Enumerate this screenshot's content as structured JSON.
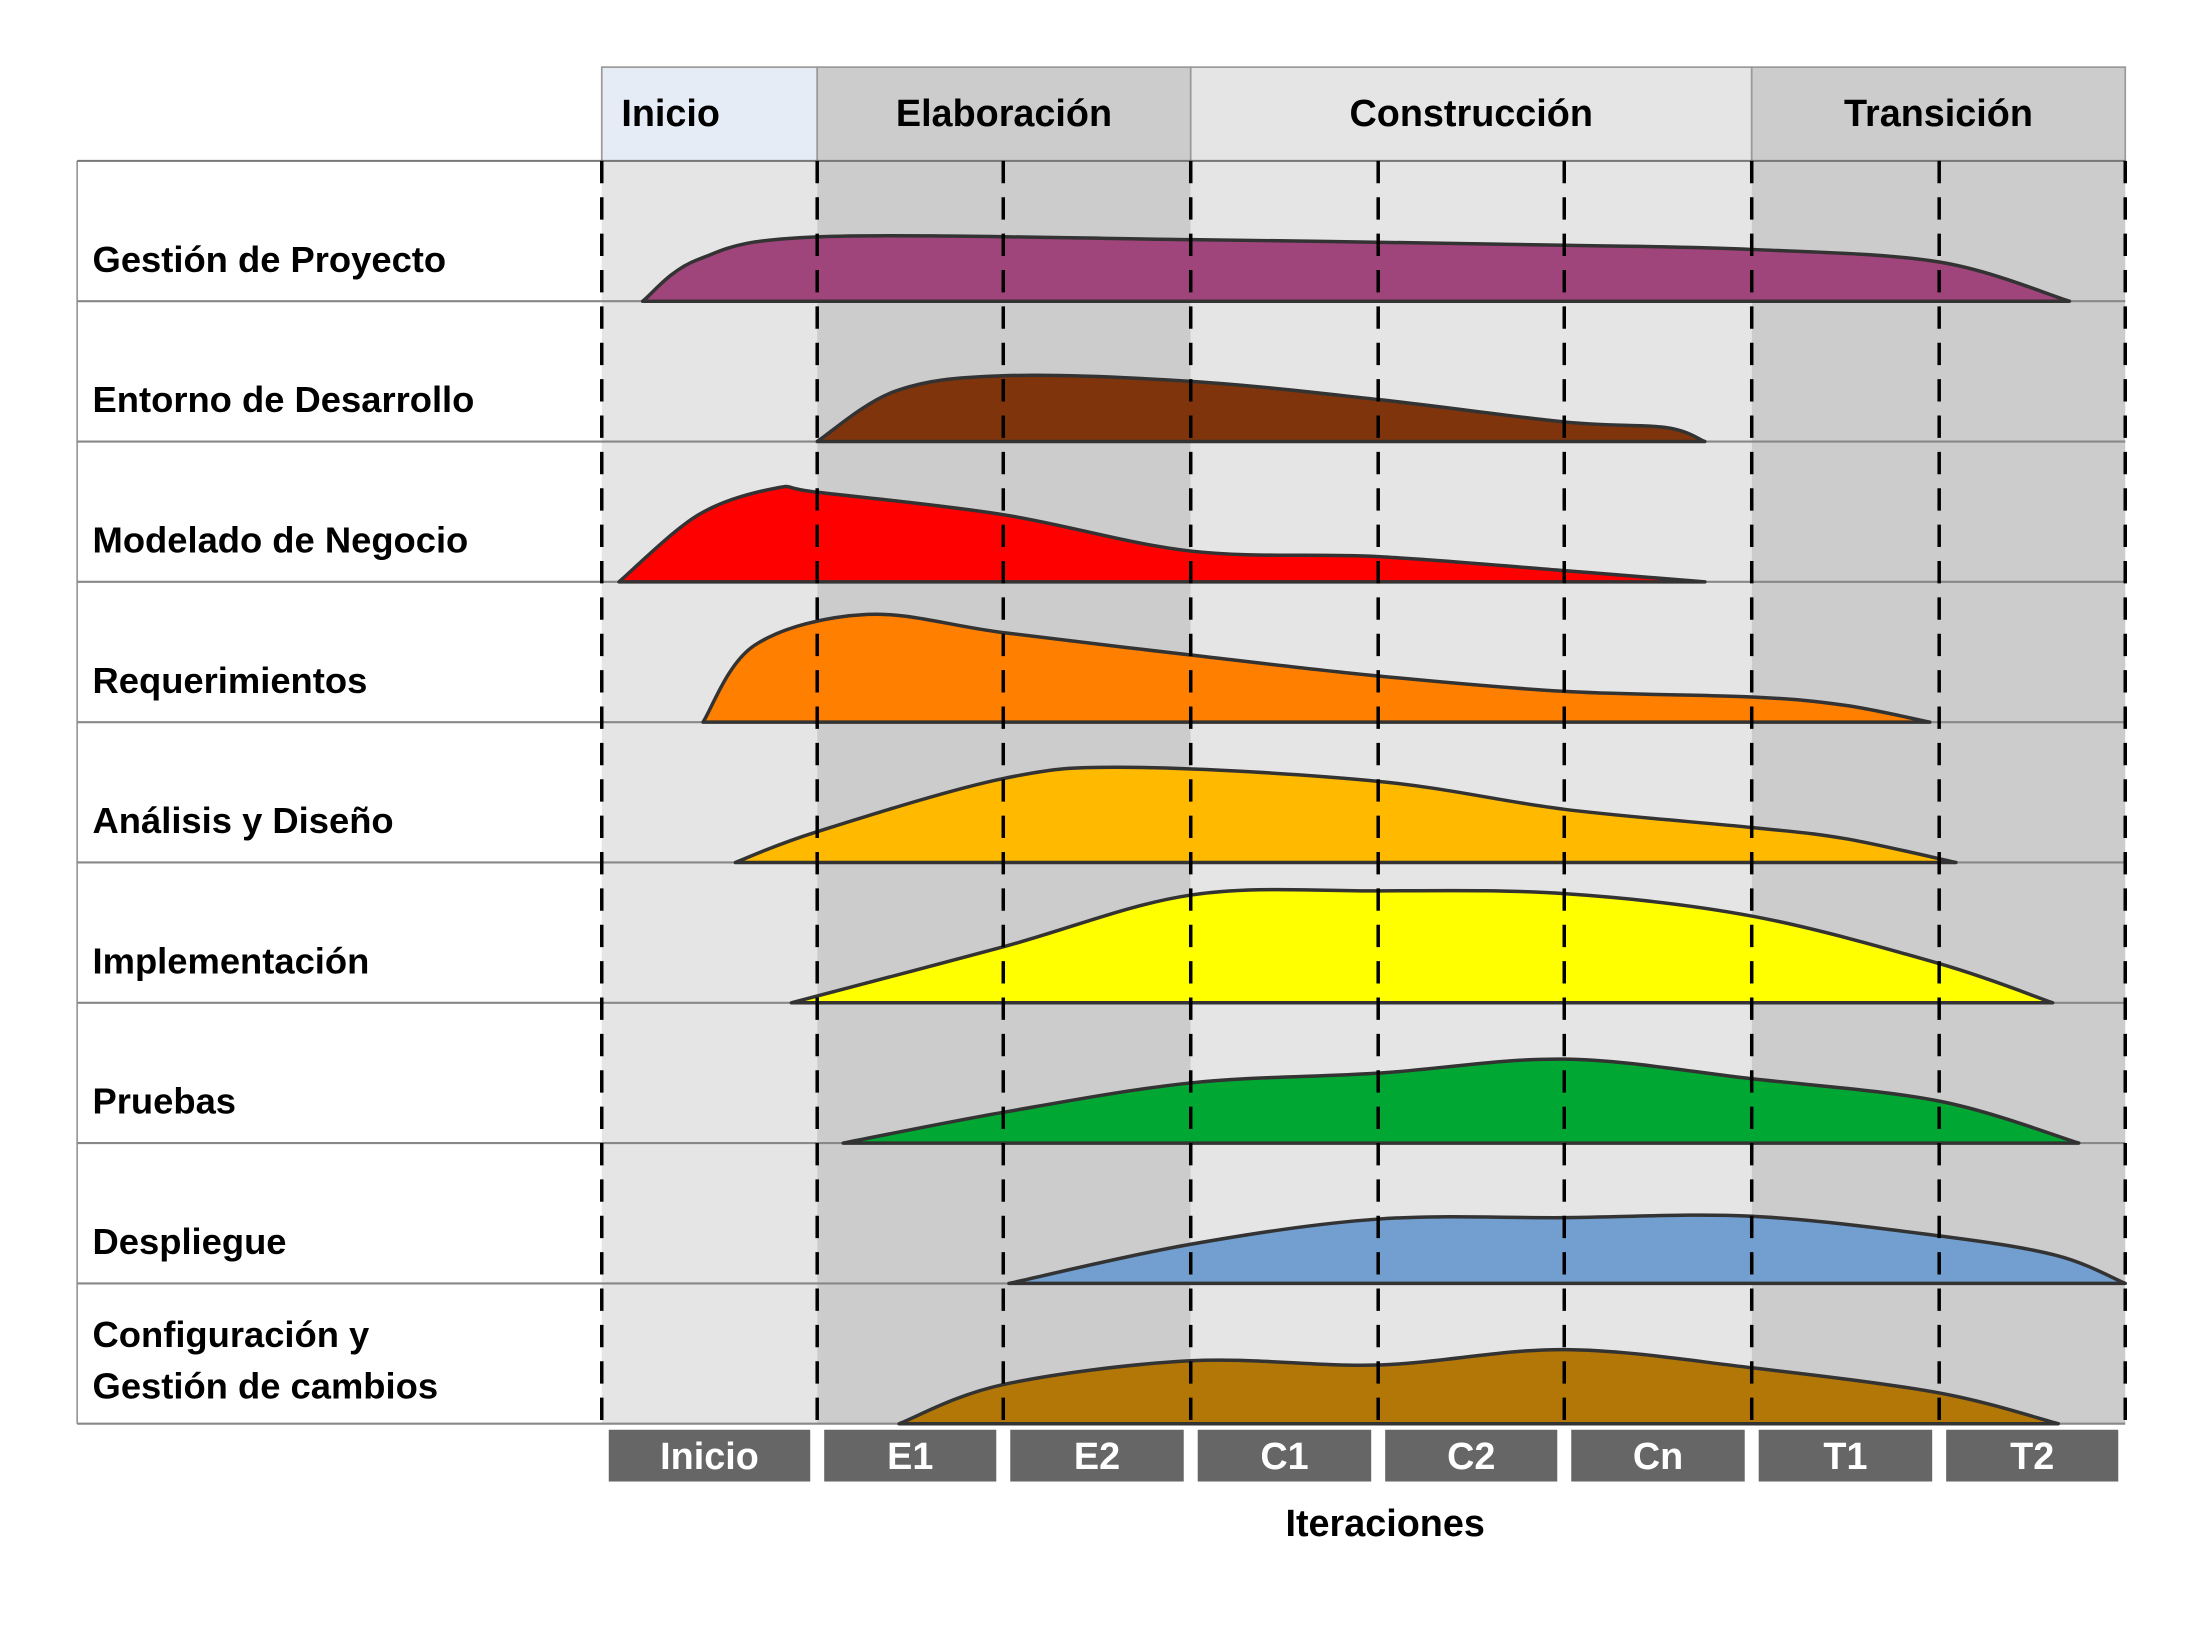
{
  "phases": [
    {
      "label": "Inicio",
      "color": "#e6ecf5",
      "column_color": "#e5e5e5"
    },
    {
      "label": "Elaboración",
      "color": "#cccccc",
      "column_color": "#cccccc"
    },
    {
      "label": "Construcción",
      "color": "#e5e5e5",
      "column_color": "#e5e5e5"
    },
    {
      "label": "Transición",
      "color": "#cccccc",
      "column_color": "#cccccc"
    }
  ],
  "iterations": [
    "Inicio",
    "E1",
    "E2",
    "C1",
    "C2",
    "Cn",
    "T1",
    "T2"
  ],
  "iterations_axis_label": "Iteraciones",
  "disciplines": [
    {
      "label": [
        "Gestión de Proyecto"
      ],
      "color": "#a0457b",
      "effort": [
        [
          0.19,
          0
        ],
        [
          0.45,
          30
        ],
        [
          1,
          46
        ],
        [
          3,
          44
        ],
        [
          5,
          40
        ],
        [
          6,
          37
        ],
        [
          7,
          28
        ],
        [
          7.7,
          0
        ]
      ]
    },
    {
      "label": [
        "Entorno de Desarrollo"
      ],
      "color": "#7f340b",
      "effort": [
        [
          1,
          0
        ],
        [
          1.42,
          36
        ],
        [
          2,
          47
        ],
        [
          3,
          43
        ],
        [
          4,
          30
        ],
        [
          5,
          14
        ],
        [
          5.54,
          10
        ],
        [
          5.75,
          0
        ]
      ]
    },
    {
      "label": [
        "Modelado de Negocio"
      ],
      "color": "#ff0000",
      "effort": [
        [
          0.08,
          0
        ],
        [
          0.45,
          48
        ],
        [
          0.81,
          67
        ],
        [
          1,
          64
        ],
        [
          2,
          48
        ],
        [
          3,
          22
        ],
        [
          4,
          18
        ],
        [
          5,
          8
        ],
        [
          5.75,
          0
        ]
      ]
    },
    {
      "label": [
        "Requerimientos"
      ],
      "color": "#ff7f00",
      "effort": [
        [
          0.47,
          0
        ],
        [
          0.71,
          55
        ],
        [
          1.27,
          77
        ],
        [
          2,
          64
        ],
        [
          3,
          48
        ],
        [
          4,
          33
        ],
        [
          5,
          22
        ],
        [
          6,
          18
        ],
        [
          6.5,
          12
        ],
        [
          6.95,
          0
        ]
      ]
    },
    {
      "label": [
        "Análisis y Diseño"
      ],
      "color": "#ffba00",
      "effort": [
        [
          0.62,
          0
        ],
        [
          1,
          22
        ],
        [
          2,
          60
        ],
        [
          2.69,
          68
        ],
        [
          4,
          58
        ],
        [
          5,
          38
        ],
        [
          6,
          25
        ],
        [
          6.5,
          17
        ],
        [
          7.09,
          0
        ]
      ]
    },
    {
      "label": [
        "Implementación"
      ],
      "color": "#ffff00",
      "effort": [
        [
          0.88,
          0
        ],
        [
          2,
          40
        ],
        [
          3,
          77
        ],
        [
          4,
          80
        ],
        [
          5,
          78
        ],
        [
          6,
          62
        ],
        [
          7,
          28
        ],
        [
          7.61,
          0
        ]
      ]
    },
    {
      "label": [
        "Pruebas"
      ],
      "color": "#00a833",
      "effort": [
        [
          1.14,
          0
        ],
        [
          2,
          22
        ],
        [
          3,
          43
        ],
        [
          4,
          50
        ],
        [
          5,
          60
        ],
        [
          6,
          46
        ],
        [
          7,
          30
        ],
        [
          7.75,
          0
        ]
      ]
    },
    {
      "label": [
        "Despliegue"
      ],
      "color": "#729fcf",
      "effort": [
        [
          2.03,
          0
        ],
        [
          3,
          28
        ],
        [
          4,
          46
        ],
        [
          5,
          47
        ],
        [
          6,
          48
        ],
        [
          7,
          34
        ],
        [
          7.63,
          20
        ],
        [
          8,
          0
        ]
      ]
    },
    {
      "label": [
        "Configuración y",
        "Gestión de cambios"
      ],
      "color": "#b27707",
      "effort": [
        [
          1.44,
          0
        ],
        [
          2,
          28
        ],
        [
          3,
          45
        ],
        [
          4,
          42
        ],
        [
          5,
          53
        ],
        [
          6,
          40
        ],
        [
          7,
          22
        ],
        [
          7.64,
          0
        ]
      ]
    }
  ]
}
